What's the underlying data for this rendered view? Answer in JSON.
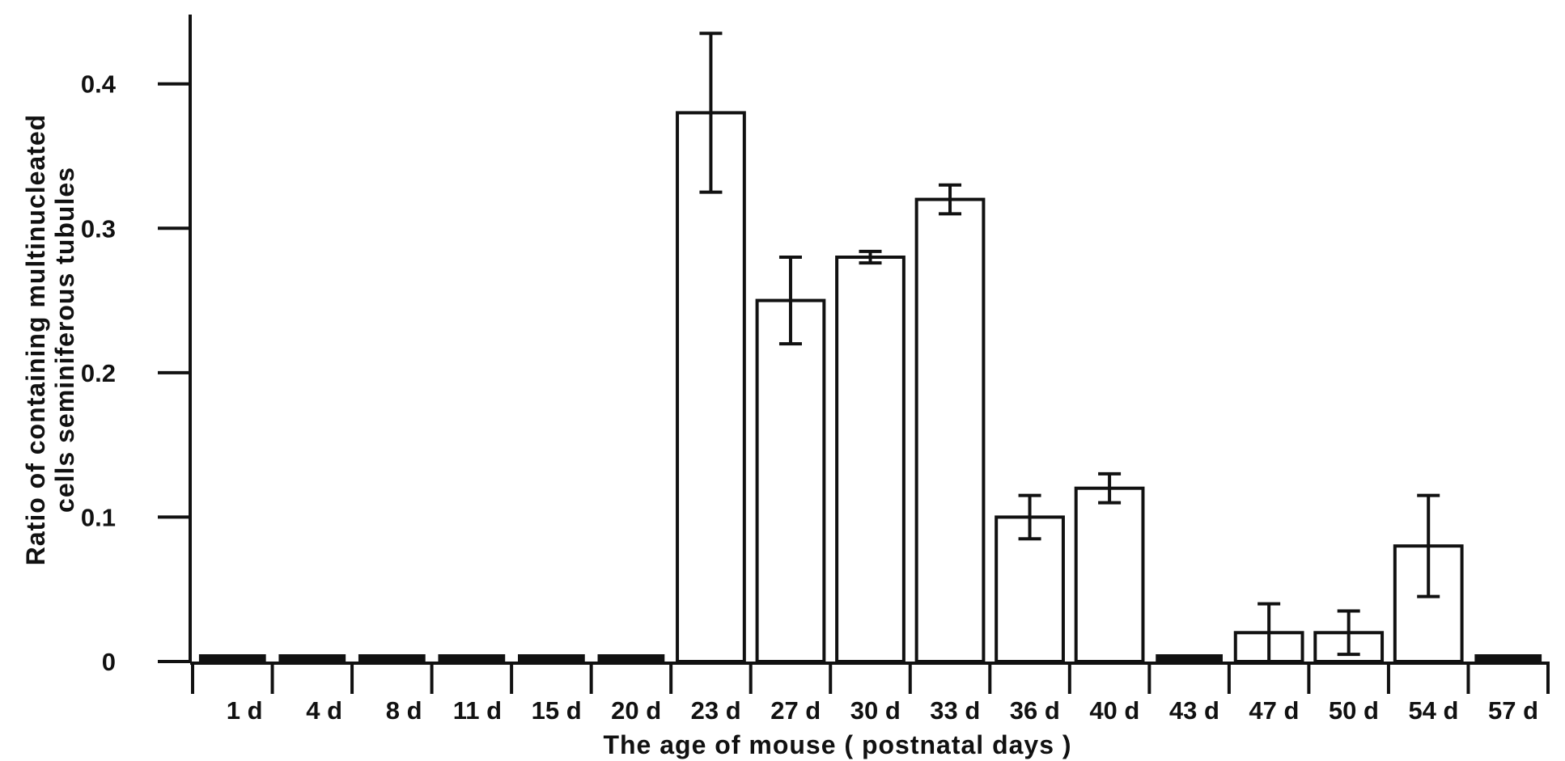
{
  "chart_data": {
    "type": "bar",
    "title": "",
    "xlabel": "The age of  mouse ( postnatal days )",
    "ylabel_lines": [
      "Ratio of  containing  multinucleated",
      "cells  seminiferous  tubules"
    ],
    "categories": [
      "1 d",
      "4 d",
      "8 d",
      "11 d",
      "15 d",
      "20 d",
      "23 d",
      "27 d",
      "30 d",
      "33 d",
      "36 d",
      "40 d",
      "43 d",
      "47 d",
      "50 d",
      "54 d",
      "57 d"
    ],
    "values": [
      0,
      0,
      0,
      0,
      0,
      0,
      0.38,
      0.25,
      0.28,
      0.32,
      0.1,
      0.12,
      0,
      0.02,
      0.02,
      0.08,
      0
    ],
    "errors": [
      0,
      0,
      0,
      0,
      0,
      0,
      0.055,
      0.03,
      0.004,
      0.01,
      0.015,
      0.01,
      0,
      0.02,
      0.015,
      0.035,
      0
    ],
    "yticks": [
      {
        "value": 0,
        "label": "0"
      },
      {
        "value": 0.1,
        "label": "0.1"
      },
      {
        "value": 0.2,
        "label": "0.2"
      },
      {
        "value": 0.3,
        "label": "0.3"
      },
      {
        "value": 0.4,
        "label": "0.4"
      }
    ],
    "ylim": [
      0,
      0.448
    ],
    "grid": false,
    "legend": "none",
    "colors": {
      "bar_fill": "#ffffff",
      "bar_stroke": "#111111",
      "zero_bar": "#111111",
      "axis": "#111111"
    }
  }
}
